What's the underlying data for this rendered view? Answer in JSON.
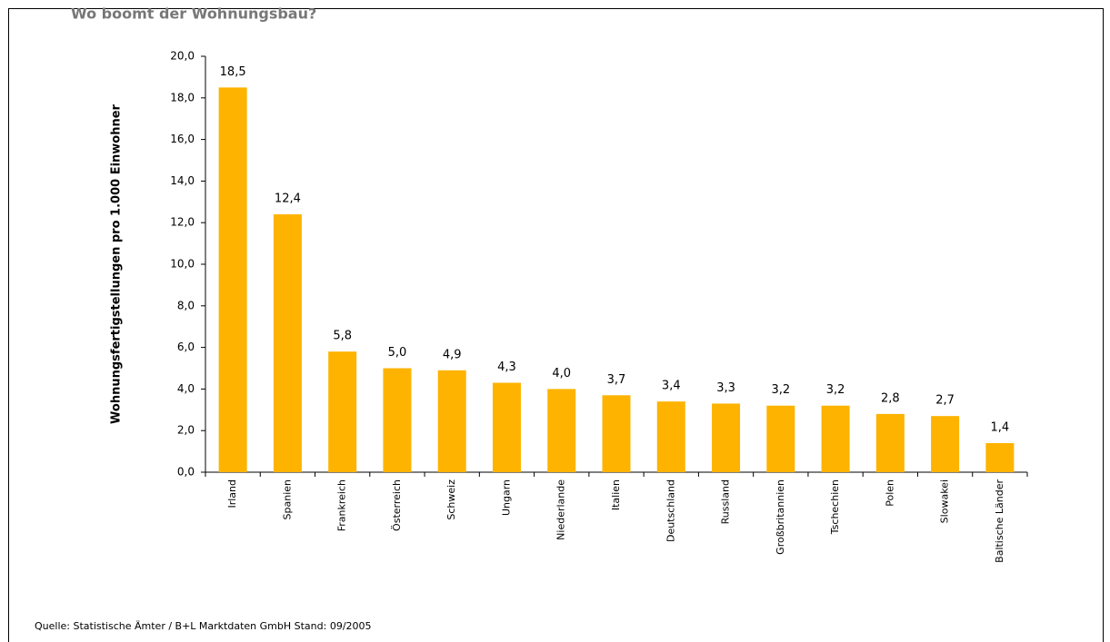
{
  "chart_data": {
    "type": "bar",
    "title": "Wo boomt der Wohnungsbau?",
    "ylabel": "Wohnungsfertigstellungen pro 1.000 Einwohner",
    "source": "Quelle: Statistische Ämter / B+L Marktdaten GmbH Stand: 09/2005",
    "categories": [
      "Irland",
      "Spanien",
      "Frankreich",
      "Österreich",
      "Schweiz",
      "Ungarn",
      "Niederlande",
      "Italien",
      "Deutschland",
      "Russland",
      "Großbritannien",
      "Tschechien",
      "Polen",
      "Slowakei",
      "Baltische Länder"
    ],
    "values": [
      18.5,
      12.4,
      5.8,
      5.0,
      4.9,
      4.3,
      4.0,
      3.7,
      3.4,
      3.3,
      3.2,
      3.2,
      2.8,
      2.7,
      1.4
    ],
    "value_labels": [
      "18,5",
      "12,4",
      "5,8",
      "5,0",
      "4,9",
      "4,3",
      "4,0",
      "3,7",
      "3,4",
      "3,3",
      "3,2",
      "3,2",
      "2,8",
      "2,7",
      "1,4"
    ],
    "color": "#fdb300",
    "ylim": [
      0,
      20
    ],
    "yticks": [
      {
        "value": 0,
        "label": "0,0"
      },
      {
        "value": 2,
        "label": "2,0"
      },
      {
        "value": 4,
        "label": "4,0"
      },
      {
        "value": 6,
        "label": "6,0"
      },
      {
        "value": 8,
        "label": "8,0"
      },
      {
        "value": 10,
        "label": "10,0"
      },
      {
        "value": 12,
        "label": "12,0"
      },
      {
        "value": 14,
        "label": "14,0"
      },
      {
        "value": 16,
        "label": "16,0"
      },
      {
        "value": 18,
        "label": "18,0"
      },
      {
        "value": 20,
        "label": "20,0"
      }
    ],
    "grid": false
  }
}
